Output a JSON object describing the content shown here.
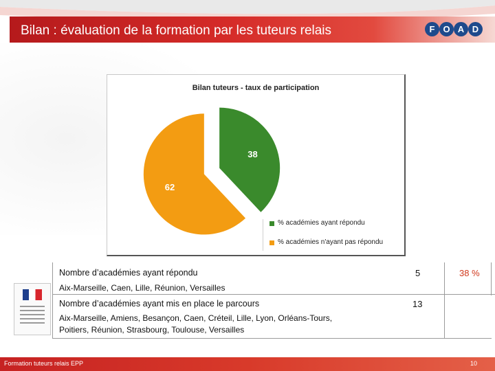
{
  "header": {
    "title": "Bilan : évaluation de la formation par les tuteurs relais",
    "logo_letters": [
      "F",
      "O",
      "A",
      "D"
    ]
  },
  "colors": {
    "title_red": "#c4221f",
    "green": "#3a8a2c",
    "orange": "#f39c12",
    "pct_red": "#d0381c"
  },
  "chart_data": {
    "type": "pie",
    "title": "Bilan tuteurs - taux de participation",
    "categories": [
      "% académies ayant répondu",
      "% académies n'ayant pas répondu"
    ],
    "values": [
      38,
      62
    ],
    "data_labels": [
      "38",
      "62"
    ],
    "colors": [
      "#3a8a2c",
      "#f39c12"
    ],
    "legend": "bottom-right"
  },
  "table": {
    "rows": [
      {
        "heading": "Nombre d’académies ayant répondu",
        "detail": "Aix-Marseille, Caen, Lille, Réunion, Versailles",
        "count": "5",
        "percent": "38 %"
      },
      {
        "heading": "Nombre d’académies ayant mis en place le parcours",
        "detail_line1": "Aix-Marseille, Amiens, Besançon, Caen, Créteil, Lille, Lyon, Orléans-Tours,",
        "detail_line2": "Poitiers, Réunion, Strasbourg, Toulouse, Versailles",
        "count": "13"
      }
    ]
  },
  "footer": {
    "left": "Formation tuteurs relais EPP",
    "page": "10"
  }
}
